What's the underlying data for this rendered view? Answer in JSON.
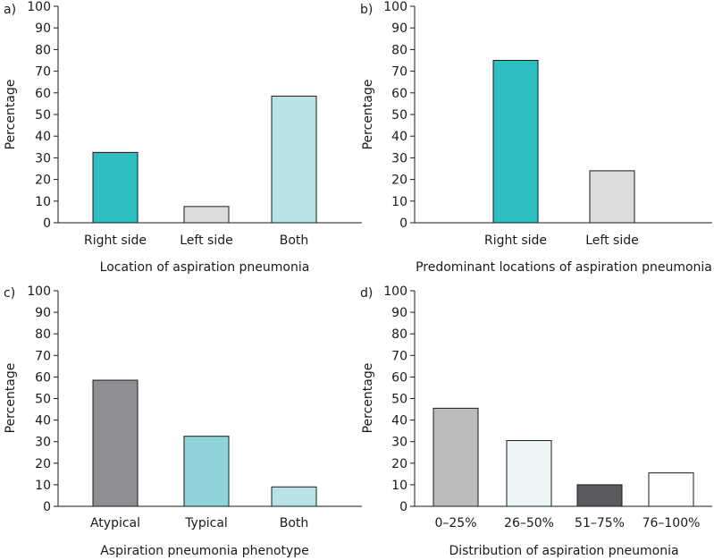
{
  "chart_data": [
    {
      "type": "bar",
      "panel": "a)",
      "categories": [
        "Right side",
        "Left side",
        "Both"
      ],
      "values": [
        32.5,
        7.5,
        58.5
      ],
      "colors": [
        "#2fbfc1",
        "#dcdcde",
        "#b9e2e6"
      ],
      "xlabel": "Location of aspiration pneumonia",
      "ylabel": "Percentage",
      "ylim": [
        0,
        100
      ],
      "yticks": [
        0,
        10,
        20,
        30,
        40,
        50,
        60,
        70,
        80,
        90,
        100
      ]
    },
    {
      "type": "bar",
      "panel": "b)",
      "categories": [
        "Right side",
        "Left side"
      ],
      "values": [
        75,
        24
      ],
      "colors": [
        "#2fbfc1",
        "#dcdcde"
      ],
      "xlabel": "Predominant locations of aspiration pneumonia",
      "ylabel": "Percentage",
      "ylim": [
        0,
        100
      ],
      "yticks": [
        0,
        10,
        20,
        30,
        40,
        50,
        60,
        70,
        80,
        90,
        100
      ]
    },
    {
      "type": "bar",
      "panel": "c)",
      "categories": [
        "Atypical",
        "Typical",
        "Both"
      ],
      "values": [
        58.5,
        32.5,
        9
      ],
      "colors": [
        "#8e8f92",
        "#8fd4d8",
        "#b9e2e6"
      ],
      "xlabel": "Aspiration pneumonia phenotype",
      "ylabel": "Percentage",
      "ylim": [
        0,
        100
      ],
      "yticks": [
        0,
        10,
        20,
        30,
        40,
        50,
        60,
        70,
        80,
        90,
        100
      ]
    },
    {
      "type": "bar",
      "panel": "d)",
      "categories": [
        "0–25%",
        "26–50%",
        "51–75%",
        "76–100%"
      ],
      "values": [
        45.5,
        30.5,
        10,
        15.5
      ],
      "colors": [
        "#bbbcbe",
        "#eef7f8",
        "#5a5b5e",
        "#ffffff"
      ],
      "xlabel": "Distribution of aspiration pneumonia",
      "ylabel": "Percentage",
      "ylim": [
        0,
        100
      ],
      "yticks": [
        0,
        10,
        20,
        30,
        40,
        50,
        60,
        70,
        80,
        90,
        100
      ]
    }
  ]
}
